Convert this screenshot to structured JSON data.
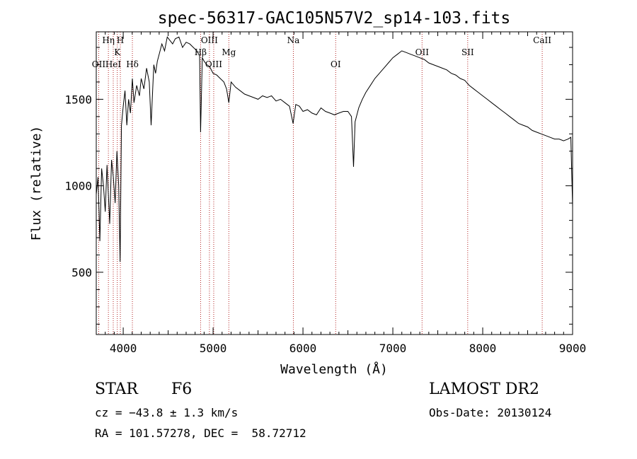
{
  "chart_data": {
    "type": "line",
    "title": "spec-56317-GAC105N57V2_sp14-103.fits",
    "xlabel": "Wavelength (Å)",
    "ylabel": "Flux (relative)",
    "xlim": [
      3700,
      9000
    ],
    "ylim": [
      140,
      1890
    ],
    "xticks": [
      4000,
      5000,
      6000,
      7000,
      8000,
      9000
    ],
    "yticks": [
      500,
      1000,
      1500
    ],
    "grid": false,
    "series": [
      {
        "x": [
          3700,
          3720,
          3740,
          3760,
          3780,
          3800,
          3820,
          3835,
          3850,
          3870,
          3890,
          3910,
          3930,
          3950,
          3965,
          3980,
          4000,
          4020,
          4040,
          4060,
          4080,
          4102,
          4120,
          4150,
          4180,
          4200,
          4230,
          4260,
          4290,
          4310,
          4340,
          4360,
          4380,
          4400,
          4430,
          4460,
          4490,
          4520,
          4550,
          4580,
          4620,
          4660,
          4700,
          4740,
          4780,
          4820,
          4850,
          4861,
          4880,
          4900,
          4930,
          4960,
          5000,
          5040,
          5080,
          5120,
          5150,
          5175,
          5200,
          5250,
          5300,
          5350,
          5400,
          5450,
          5500,
          5550,
          5600,
          5650,
          5700,
          5750,
          5800,
          5850,
          5890,
          5920,
          5960,
          6000,
          6050,
          6100,
          6150,
          6200,
          6250,
          6300,
          6350,
          6400,
          6450,
          6500,
          6540,
          6563,
          6580,
          6620,
          6660,
          6700,
          6750,
          6800,
          6850,
          6900,
          6950,
          7000,
          7050,
          7100,
          7150,
          7200,
          7250,
          7300,
          7350,
          7400,
          7450,
          7500,
          7550,
          7600,
          7650,
          7700,
          7750,
          7800,
          7850,
          7900,
          7950,
          8000,
          8050,
          8100,
          8150,
          8200,
          8250,
          8300,
          8350,
          8400,
          8450,
          8500,
          8550,
          8600,
          8650,
          8700,
          8750,
          8800,
          8850,
          8900,
          8950,
          8980,
          9000
        ],
        "y": [
          950,
          1050,
          680,
          1100,
          1000,
          850,
          1120,
          950,
          780,
          1150,
          1050,
          900,
          1200,
          1000,
          560,
          1350,
          1460,
          1550,
          1350,
          1500,
          1420,
          1620,
          1480,
          1580,
          1520,
          1620,
          1560,
          1680,
          1600,
          1350,
          1700,
          1650,
          1720,
          1760,
          1820,
          1780,
          1860,
          1840,
          1820,
          1850,
          1860,
          1800,
          1830,
          1820,
          1800,
          1780,
          1750,
          1310,
          1740,
          1720,
          1700,
          1690,
          1650,
          1640,
          1620,
          1600,
          1560,
          1480,
          1600,
          1570,
          1550,
          1530,
          1520,
          1510,
          1500,
          1520,
          1510,
          1520,
          1490,
          1500,
          1480,
          1460,
          1360,
          1470,
          1460,
          1430,
          1440,
          1420,
          1410,
          1450,
          1430,
          1420,
          1410,
          1420,
          1430,
          1430,
          1400,
          1110,
          1370,
          1450,
          1500,
          1540,
          1580,
          1620,
          1650,
          1680,
          1710,
          1740,
          1760,
          1780,
          1770,
          1760,
          1750,
          1740,
          1730,
          1710,
          1700,
          1690,
          1680,
          1670,
          1650,
          1640,
          1620,
          1610,
          1580,
          1560,
          1540,
          1520,
          1500,
          1480,
          1460,
          1440,
          1420,
          1400,
          1380,
          1360,
          1350,
          1340,
          1320,
          1310,
          1300,
          1290,
          1280,
          1270,
          1270,
          1260,
          1270,
          1280,
          880
        ]
      }
    ],
    "lines": [
      {
        "label": "OII",
        "x": 3727,
        "row": 3
      },
      {
        "label": "HeI",
        "x": 3889,
        "row": 3
      },
      {
        "label": "Hη",
        "x": 3835,
        "row": 1
      },
      {
        "label": "H",
        "x": 3968,
        "row": 1
      },
      {
        "label": "K",
        "x": 3934,
        "row": 2
      },
      {
        "label": "Hδ",
        "x": 4102,
        "row": 3
      },
      {
        "label": "OIII",
        "x": 4959,
        "row": 1
      },
      {
        "label": "Hβ",
        "x": 4861,
        "row": 2
      },
      {
        "label": "OIII",
        "x": 5007,
        "row": 3
      },
      {
        "label": "Mg",
        "x": 5175,
        "row": 2
      },
      {
        "label": "Na",
        "x": 5893,
        "row": 1
      },
      {
        "label": "OI",
        "x": 6364,
        "row": 3
      },
      {
        "label": "OII",
        "x": 7325,
        "row": 2
      },
      {
        "label": "SII",
        "x": 7833,
        "row": 2
      },
      {
        "label": "CaII",
        "x": 8662,
        "row": 1
      }
    ]
  },
  "info": {
    "object_type": "STAR",
    "subclass": "F6",
    "cz": "cz = −43.8 ± 1.3 km/s",
    "coords": "RA = 101.57278, DEC =  58.72712",
    "survey": "LAMOST DR2",
    "obs_date": "Obs-Date: 20130124"
  }
}
